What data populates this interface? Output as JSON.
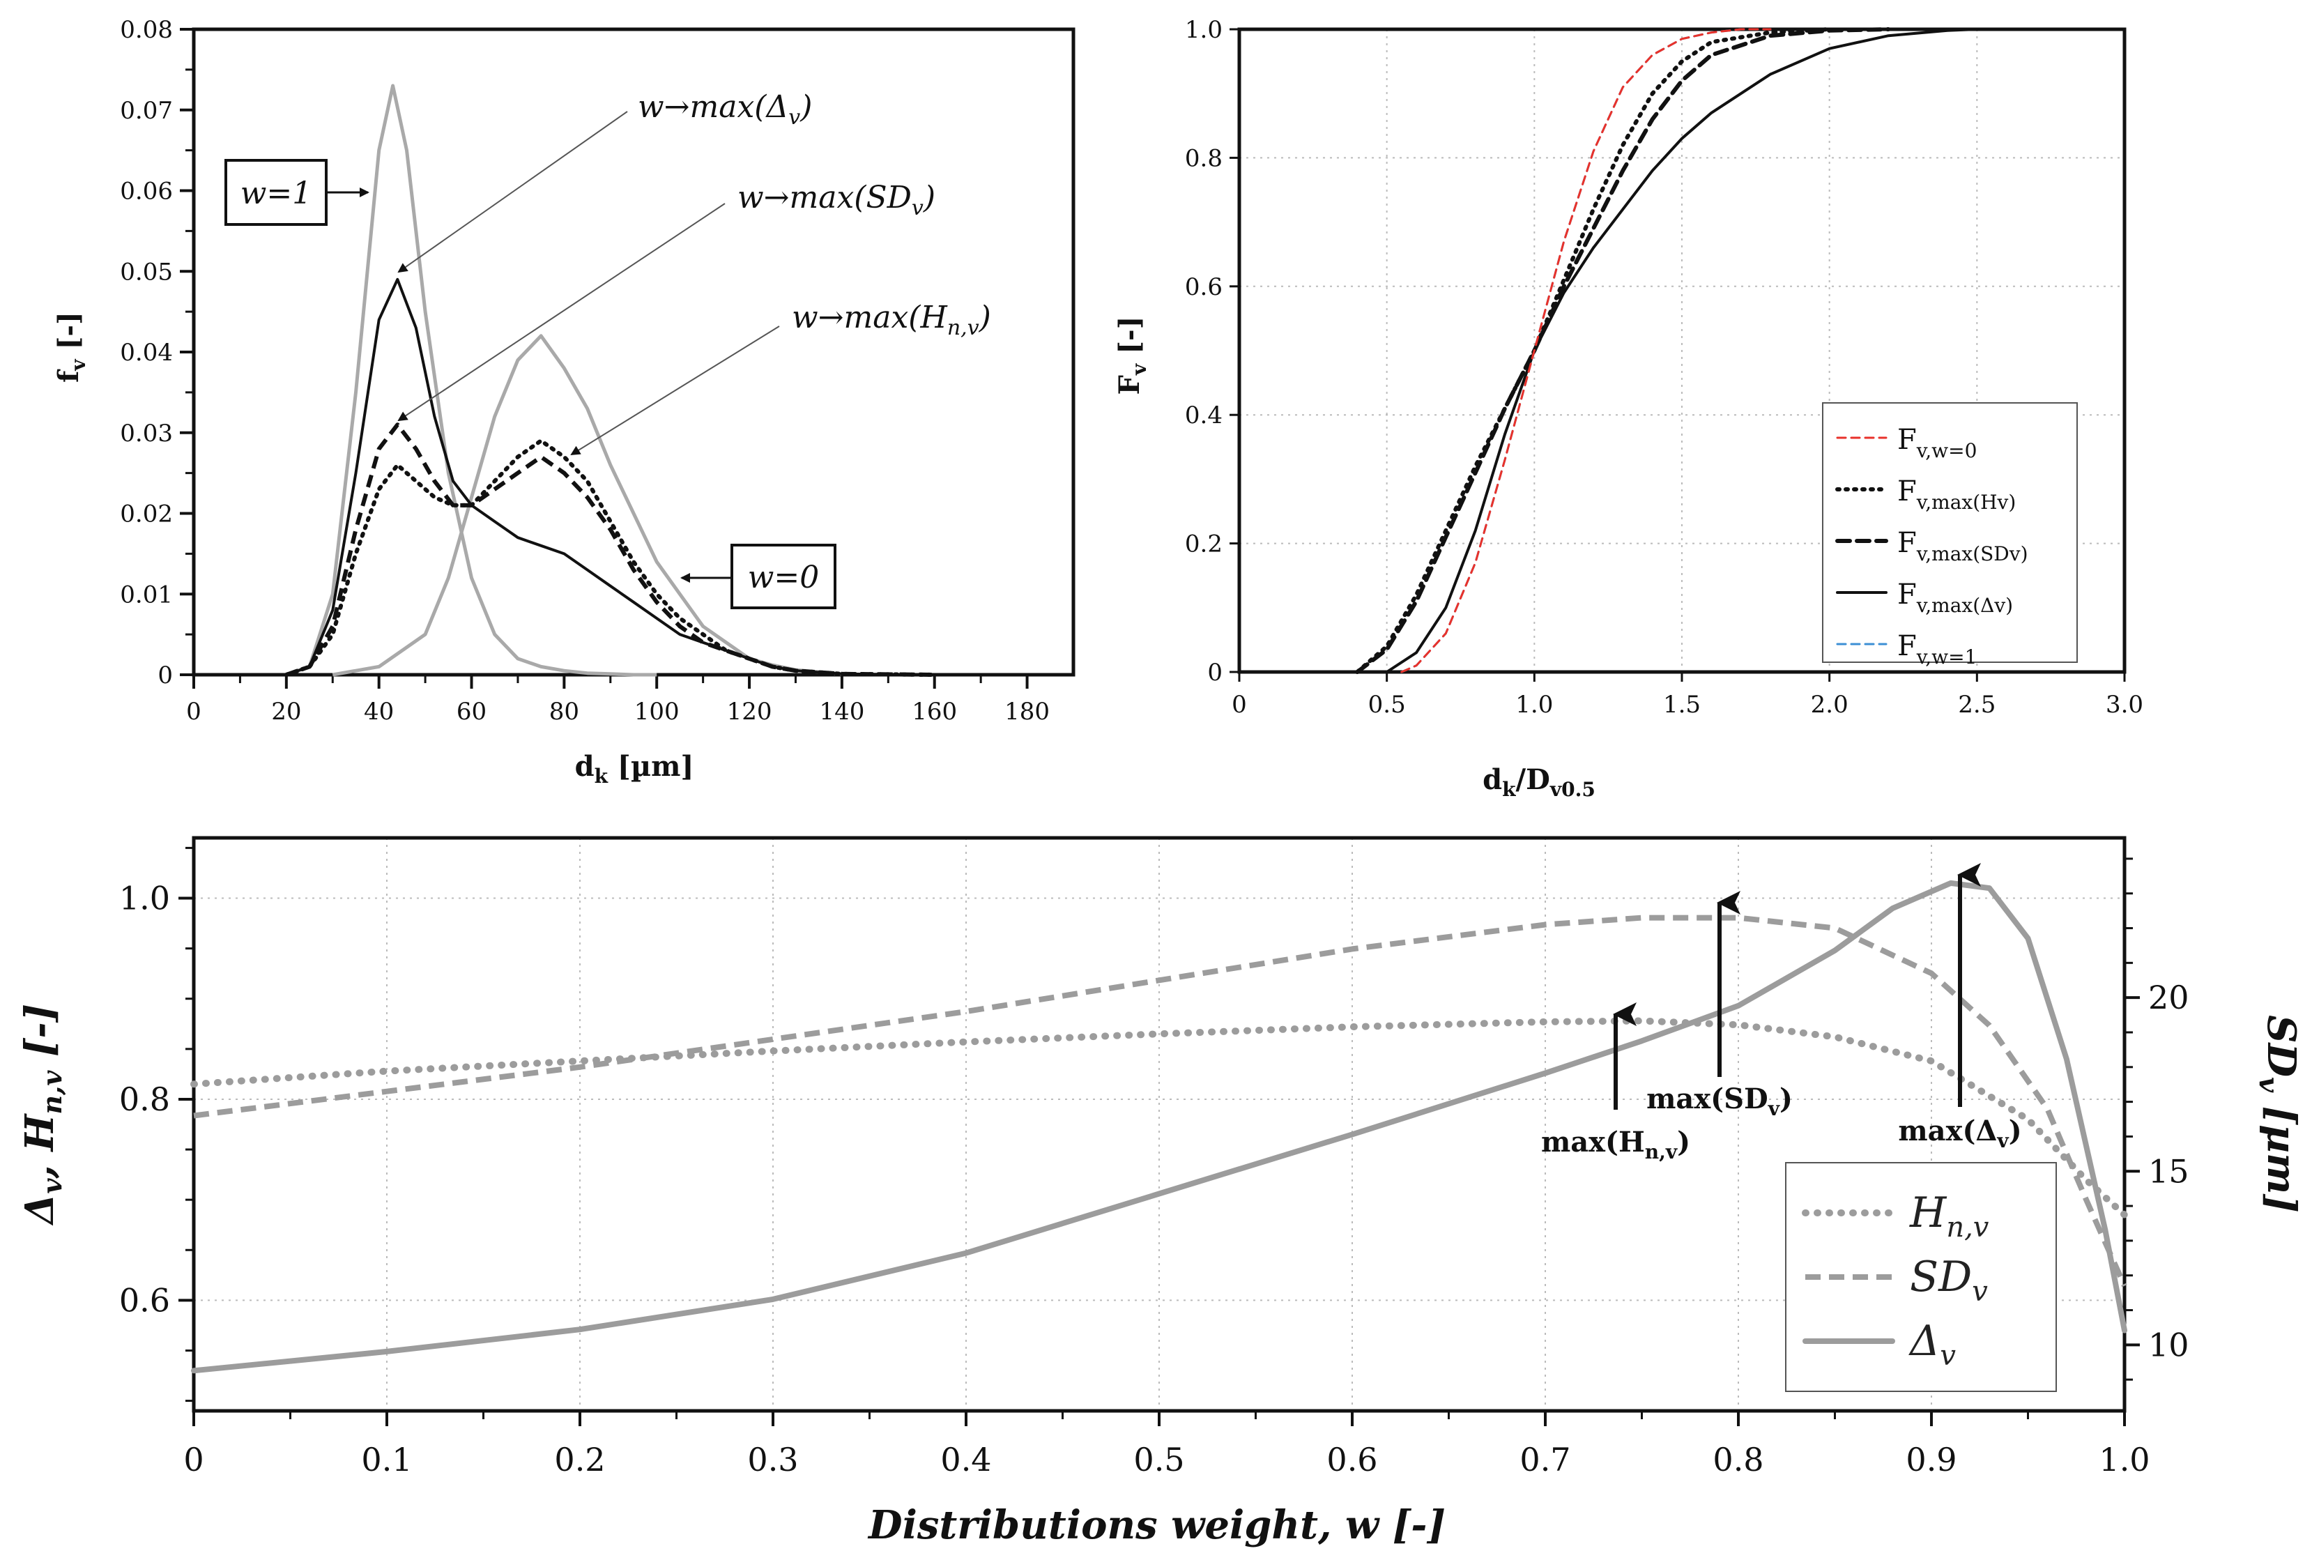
{
  "chart_data": [
    {
      "id": "top-left",
      "type": "line",
      "title": "",
      "xlabel": "d_k [µm]",
      "ylabel": "f_v [-]",
      "xlim": [
        0,
        190
      ],
      "ylim": [
        0,
        0.08
      ],
      "xticks": [
        "0",
        "20",
        "40",
        "60",
        "80",
        "100",
        "120",
        "140",
        "160",
        "180"
      ],
      "yticks": [
        "0",
        "0.01",
        "0.02",
        "0.03",
        "0.04",
        "0.05",
        "0.06",
        "0.07",
        "0.08"
      ],
      "grid": false,
      "series": [
        {
          "name": "w=1",
          "style": "gray-solid",
          "x": [
            20,
            25,
            30,
            35,
            40,
            43,
            46,
            50,
            55,
            60,
            65,
            70,
            75,
            80,
            85,
            90,
            95,
            100
          ],
          "y": [
            0,
            0.001,
            0.01,
            0.035,
            0.065,
            0.073,
            0.065,
            0.045,
            0.025,
            0.012,
            0.005,
            0.002,
            0.001,
            0.0005,
            0.0002,
            0.0001,
            0,
            0
          ]
        },
        {
          "name": "w=0",
          "style": "gray-solid",
          "x": [
            30,
            40,
            50,
            55,
            60,
            65,
            70,
            75,
            80,
            85,
            90,
            95,
            100,
            105,
            110,
            115,
            120,
            125,
            130,
            140
          ],
          "y": [
            0,
            0.001,
            0.005,
            0.012,
            0.022,
            0.032,
            0.039,
            0.042,
            0.038,
            0.033,
            0.026,
            0.02,
            0.014,
            0.01,
            0.006,
            0.004,
            0.002,
            0.0012,
            0.0006,
            0.0001
          ]
        },
        {
          "name": "w→max(Δv)",
          "style": "black-solid",
          "x": [
            20,
            25,
            30,
            35,
            40,
            44,
            48,
            52,
            56,
            60,
            65,
            70,
            75,
            80,
            85,
            90,
            95,
            100,
            105,
            110,
            115,
            120,
            125,
            130,
            140,
            160
          ],
          "y": [
            0,
            0.001,
            0.008,
            0.025,
            0.044,
            0.049,
            0.043,
            0.032,
            0.024,
            0.021,
            0.019,
            0.017,
            0.016,
            0.015,
            0.013,
            0.011,
            0.009,
            0.007,
            0.005,
            0.004,
            0.003,
            0.002,
            0.001,
            0.0005,
            0.0001,
            0
          ]
        },
        {
          "name": "w→max(SDv)",
          "style": "black-dashed",
          "x": [
            20,
            25,
            30,
            35,
            40,
            44,
            48,
            52,
            56,
            60,
            65,
            70,
            75,
            80,
            85,
            90,
            95,
            100,
            105,
            110,
            115,
            120,
            125,
            130,
            140,
            160
          ],
          "y": [
            0,
            0.001,
            0.006,
            0.018,
            0.028,
            0.031,
            0.028,
            0.024,
            0.021,
            0.021,
            0.023,
            0.025,
            0.027,
            0.025,
            0.022,
            0.018,
            0.013,
            0.009,
            0.006,
            0.004,
            0.003,
            0.002,
            0.001,
            0.0005,
            0.0001,
            0
          ]
        },
        {
          "name": "w→max(Hn,v)",
          "style": "black-dotted",
          "x": [
            20,
            25,
            30,
            35,
            40,
            44,
            48,
            52,
            56,
            60,
            65,
            70,
            75,
            80,
            85,
            90,
            95,
            100,
            105,
            110,
            115,
            120,
            125,
            130,
            140,
            160
          ],
          "y": [
            0,
            0.001,
            0.005,
            0.015,
            0.023,
            0.026,
            0.024,
            0.022,
            0.021,
            0.021,
            0.024,
            0.027,
            0.029,
            0.027,
            0.024,
            0.019,
            0.014,
            0.01,
            0.007,
            0.005,
            0.003,
            0.002,
            0.001,
            0.0005,
            0.0001,
            0
          ]
        }
      ],
      "annotations": [
        "w=1",
        "w=0",
        "w→max(Δv)",
        "w→max(SDv)",
        "w→max(Hn,v)"
      ]
    },
    {
      "id": "top-right",
      "type": "line",
      "title": "",
      "xlabel": "d_k/D_v0.5",
      "ylabel": "F_v [-]",
      "xlim": [
        0,
        3.0
      ],
      "ylim": [
        0,
        1.0
      ],
      "xticks": [
        "0",
        "0.5",
        "1.0",
        "1.5",
        "2.0",
        "2.5",
        "3.0"
      ],
      "yticks": [
        "0",
        "0.2",
        "0.4",
        "0.6",
        "0.8",
        "1.0"
      ],
      "grid": true,
      "legend_position": "bottom-right",
      "series": [
        {
          "name": "Fv,w=0",
          "label_main": "F",
          "label_sub": "v,w=0",
          "color": "#e8322b",
          "style": "dashed",
          "x": [
            0.55,
            0.6,
            0.7,
            0.8,
            0.9,
            1.0,
            1.1,
            1.2,
            1.3,
            1.4,
            1.5,
            1.6,
            1.7,
            1.8
          ],
          "y": [
            0,
            0.01,
            0.06,
            0.17,
            0.33,
            0.5,
            0.67,
            0.81,
            0.91,
            0.96,
            0.985,
            0.995,
            1.0,
            1.0
          ]
        },
        {
          "name": "Fv,max(Hv)",
          "label_main": "F",
          "label_sub": "v,max(Hv)",
          "color": "#111111",
          "style": "dotted",
          "x": [
            0.4,
            0.5,
            0.6,
            0.7,
            0.8,
            0.9,
            1.0,
            1.1,
            1.2,
            1.3,
            1.4,
            1.5,
            1.6,
            1.8,
            2.0
          ],
          "y": [
            0,
            0.04,
            0.12,
            0.22,
            0.32,
            0.41,
            0.5,
            0.61,
            0.72,
            0.82,
            0.9,
            0.95,
            0.98,
            0.995,
            1.0
          ]
        },
        {
          "name": "Fv,max(SDv)",
          "label_main": "F",
          "label_sub": "v,max(SDv)",
          "color": "#111111",
          "style": "dashed",
          "x": [
            0.4,
            0.5,
            0.6,
            0.7,
            0.8,
            0.9,
            1.0,
            1.1,
            1.2,
            1.3,
            1.4,
            1.5,
            1.6,
            1.8,
            2.0,
            2.2
          ],
          "y": [
            0,
            0.035,
            0.11,
            0.21,
            0.31,
            0.41,
            0.5,
            0.6,
            0.69,
            0.78,
            0.86,
            0.92,
            0.96,
            0.99,
            0.998,
            1.0
          ]
        },
        {
          "name": "Fv,max(Δv)",
          "label_main": "F",
          "label_sub": "v,max(Δv)",
          "color": "#111111",
          "style": "solid",
          "x": [
            0.5,
            0.6,
            0.7,
            0.8,
            0.9,
            1.0,
            1.1,
            1.2,
            1.3,
            1.4,
            1.5,
            1.6,
            1.8,
            2.0,
            2.2,
            2.4,
            2.5
          ],
          "y": [
            0,
            0.03,
            0.1,
            0.22,
            0.37,
            0.5,
            0.59,
            0.66,
            0.72,
            0.78,
            0.83,
            0.87,
            0.93,
            0.97,
            0.99,
            0.998,
            1.0
          ]
        },
        {
          "name": "Fv,w=1",
          "label_main": "F",
          "label_sub": "v,w=1",
          "color": "#3c8fd4",
          "style": "dashed",
          "x": [
            0.55,
            0.6,
            0.7,
            0.8,
            0.9,
            1.0,
            1.1,
            1.2,
            1.3,
            1.4,
            1.5,
            1.6,
            1.7,
            1.8
          ],
          "y": [
            0,
            0.01,
            0.06,
            0.17,
            0.33,
            0.5,
            0.67,
            0.81,
            0.91,
            0.96,
            0.985,
            0.995,
            1.0,
            1.0
          ]
        }
      ]
    },
    {
      "id": "bottom",
      "type": "line",
      "title": "",
      "xlabel": "Distributions weight, w [-]",
      "ylabel": "Δv, Hn,v [-]",
      "y2label": "SDv [µm]",
      "xlim": [
        0,
        1.0
      ],
      "ylim": [
        0.49,
        1.06
      ],
      "y2lim": [
        8.1,
        24.6
      ],
      "xticks": [
        "0",
        "0.1",
        "0.2",
        "0.3",
        "0.4",
        "0.5",
        "0.6",
        "0.7",
        "0.8",
        "0.9",
        "1.0"
      ],
      "yticks": [
        "0.6",
        "0.8",
        "1.0"
      ],
      "y2ticks": [
        "10",
        "15",
        "20"
      ],
      "grid": true,
      "legend_position": "bottom-right",
      "series": [
        {
          "name": "Hn,v",
          "label_main": "H",
          "label_sub": "n,v",
          "axis": "left",
          "style": "gray-dotted",
          "x": [
            0,
            0.1,
            0.2,
            0.3,
            0.4,
            0.5,
            0.6,
            0.7,
            0.75,
            0.8,
            0.85,
            0.9,
            0.95,
            0.98,
            1.0
          ],
          "y": [
            0.815,
            0.828,
            0.838,
            0.848,
            0.857,
            0.865,
            0.872,
            0.877,
            0.878,
            0.874,
            0.862,
            0.838,
            0.78,
            0.72,
            0.685
          ]
        },
        {
          "name": "SDv",
          "label_main": "SD",
          "label_sub": "v",
          "axis": "right",
          "style": "gray-dashed",
          "x": [
            0,
            0.1,
            0.2,
            0.3,
            0.4,
            0.5,
            0.6,
            0.7,
            0.75,
            0.8,
            0.85,
            0.9,
            0.93,
            0.96,
            0.98,
            1.0
          ],
          "y": [
            16.6,
            17.3,
            18.0,
            18.8,
            19.6,
            20.5,
            21.4,
            22.1,
            22.3,
            22.3,
            22.0,
            20.7,
            19.2,
            16.8,
            14.2,
            11.7
          ]
        },
        {
          "name": "Δv",
          "label_main": "Δ",
          "label_sub": "v",
          "axis": "left",
          "style": "gray-solid",
          "x": [
            0,
            0.1,
            0.2,
            0.3,
            0.4,
            0.5,
            0.6,
            0.7,
            0.75,
            0.8,
            0.85,
            0.88,
            0.91,
            0.93,
            0.95,
            0.97,
            0.99,
            1.0
          ],
          "y": [
            0.53,
            0.549,
            0.571,
            0.601,
            0.647,
            0.706,
            0.765,
            0.826,
            0.858,
            0.893,
            0.948,
            0.99,
            1.015,
            1.01,
            0.96,
            0.84,
            0.67,
            0.57
          ]
        }
      ],
      "annotations": [
        "max(H_n,v)",
        "max(SD_v)",
        "max(Δ_v)"
      ]
    }
  ],
  "labels": {
    "tl_ylabel_main": "f",
    "tl_ylabel_sub": "v",
    "tl_ylabel_tail": " [-]",
    "tl_xlabel_main": "d",
    "tl_xlabel_sub": "k",
    "tl_xlabel_tail": " [µm]",
    "tr_ylabel_main": "F",
    "tr_ylabel_sub": "v",
    "tr_ylabel_tail": " [-]",
    "tr_xlabel_main": "d",
    "tr_xlabel_sub": "k",
    "tr_xlabel_mid": "/D",
    "tr_xlabel_sub2": "v0.5",
    "b_xlabel": "Distributions weight, w [-]",
    "b_ylabel_a": "Δ",
    "b_ylabel_a_sub": "v",
    "b_ylabel_b": ", H",
    "b_ylabel_b_sub": "n,v",
    "b_ylabel_tail": " [-]",
    "b_y2label_main": "SD",
    "b_y2label_sub": "v",
    "b_y2label_tail": " [µm]",
    "ann_w1": "w=1",
    "ann_w0": "w=0",
    "ann_delta_main": "w→max(Δ",
    "ann_delta_sub": "v",
    "ann_close": ")",
    "ann_sd_main": "w→max(SD",
    "ann_sd_sub": "v",
    "ann_h_main": "w→max(H",
    "ann_h_sub": "n,v",
    "arrow_h_main": "max(H",
    "arrow_h_sub": "n,v",
    "arrow_sd_main": "max(SD",
    "arrow_sd_sub": "v",
    "arrow_d_main": "max(Δ",
    "arrow_d_sub": "v",
    "arrow_close": ")"
  }
}
